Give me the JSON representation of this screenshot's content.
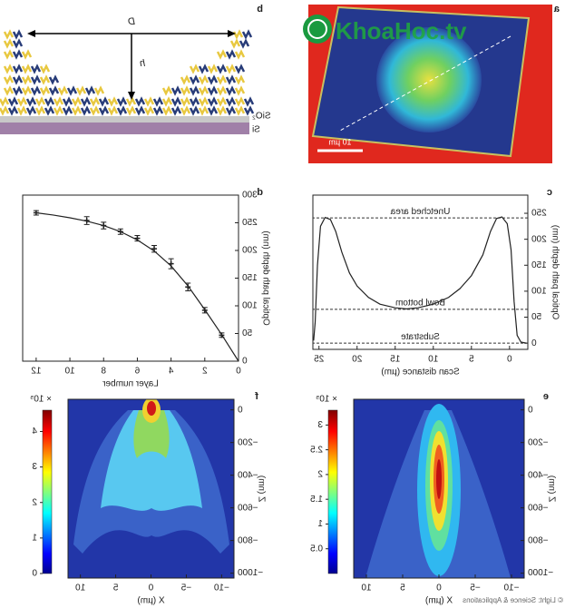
{
  "figure_a": {
    "label": "a",
    "scale_bar": "10 µm"
  },
  "figure_b": {
    "label": "b",
    "width_symbol": "D",
    "height_symbol": "h",
    "layers": [
      "SiO₂",
      "Si"
    ]
  },
  "chart_data": [
    {
      "type": "line",
      "label": "c",
      "xlabel": "Scan distance (µm)",
      "ylabel": "Optical path depth (nm)",
      "x": [
        -2.2,
        -1.5,
        -1,
        -0.6,
        -0.2,
        0.3,
        1,
        1.7,
        2.5,
        3.5,
        5,
        6.5,
        8,
        10,
        12,
        13.5,
        15,
        17,
        18.5,
        20,
        21,
        22,
        22.8,
        23.5,
        24.2,
        24.8,
        25.2,
        25.5,
        25.7
      ],
      "values": [
        0,
        2,
        15,
        80,
        180,
        230,
        243,
        240,
        215,
        170,
        130,
        105,
        88,
        75,
        68,
        66,
        68,
        75,
        88,
        110,
        135,
        175,
        215,
        238,
        242,
        225,
        150,
        40,
        5
      ],
      "reference_lines": [
        {
          "label": "Unetched area",
          "value": 241
        },
        {
          "label": "Bowl bottom",
          "value": 65
        },
        {
          "label": "Substrate",
          "value": 0
        }
      ],
      "xlim": [
        -2.4,
        25.8
      ],
      "xticks": [
        0,
        5,
        10,
        15,
        20,
        25
      ],
      "ylim": [
        -12,
        285
      ],
      "yticks": [
        0,
        50,
        100,
        150,
        200,
        250
      ],
      "color": "#222222"
    },
    {
      "type": "scatter",
      "label": "d",
      "xlabel": "Layer number",
      "ylabel": "Optical path depth (nm)",
      "points": {
        "x": [
          1,
          2,
          3,
          4,
          5,
          6,
          7,
          8,
          9,
          12
        ],
        "values": [
          47,
          92,
          134,
          176,
          203,
          222,
          234,
          245,
          254,
          268
        ],
        "errors": [
          4,
          5,
          7,
          9,
          6,
          5,
          5,
          6,
          7,
          4
        ]
      },
      "fit": {
        "x": [
          0,
          1,
          2,
          3,
          4,
          5,
          6,
          7,
          8,
          9,
          10,
          11,
          12
        ],
        "values": [
          0,
          48,
          93,
          136,
          172,
          199,
          219,
          234,
          245,
          253,
          259,
          264,
          268
        ]
      },
      "xlim": [
        0,
        12.8
      ],
      "xticks": [
        0,
        2,
        4,
        6,
        8,
        10,
        12
      ],
      "ylim": [
        0,
        300
      ],
      "yticks": [
        0,
        50,
        100,
        150,
        200,
        250,
        300
      ],
      "color": "#222222"
    },
    {
      "type": "heatmap",
      "label": "e",
      "xlabel": "X (µm)",
      "ylabel": "Z (nm)",
      "xlim": [
        -11.75,
        11.75
      ],
      "xticks": [
        {
          "value": -10,
          "label": "−10"
        },
        {
          "value": -5,
          "label": "−5"
        },
        0,
        5,
        10
      ],
      "ylim": [
        -1030,
        65
      ],
      "yticks": [
        0,
        {
          "value": -200,
          "label": "−200"
        },
        {
          "value": -400,
          "label": "−400"
        },
        {
          "value": -600,
          "label": "−600"
        },
        {
          "value": -800,
          "label": "−800"
        },
        {
          "value": -1000,
          "label": "−1000"
        }
      ],
      "colorbar": {
        "label": "× 10⁵",
        "lim": [
          0,
          3.3
        ],
        "ticks": [
          0.5,
          1,
          1.5,
          2,
          2.5,
          3
        ]
      }
    },
    {
      "type": "heatmap",
      "label": "f",
      "xlabel": "X (µm)",
      "ylabel": "Z (nm)",
      "xlim": [
        -11.75,
        11.75
      ],
      "xticks": [
        {
          "value": -10,
          "label": "−10"
        },
        {
          "value": -5,
          "label": "−5"
        },
        0,
        5,
        10
      ],
      "ylim": [
        -1030,
        65
      ],
      "yticks": [
        0,
        {
          "value": -200,
          "label": "−200"
        },
        {
          "value": -400,
          "label": "−400"
        },
        {
          "value": -600,
          "label": "−600"
        },
        {
          "value": -800,
          "label": "−800"
        },
        {
          "value": -1000,
          "label": "−1000"
        }
      ],
      "colorbar": {
        "label": "× 10⁵",
        "lim": [
          0,
          4.6
        ],
        "ticks": [
          0,
          1,
          2,
          3,
          4
        ]
      }
    }
  ],
  "credit": "© Light: Science & Applications",
  "watermark": "KhoaHoc.tv"
}
